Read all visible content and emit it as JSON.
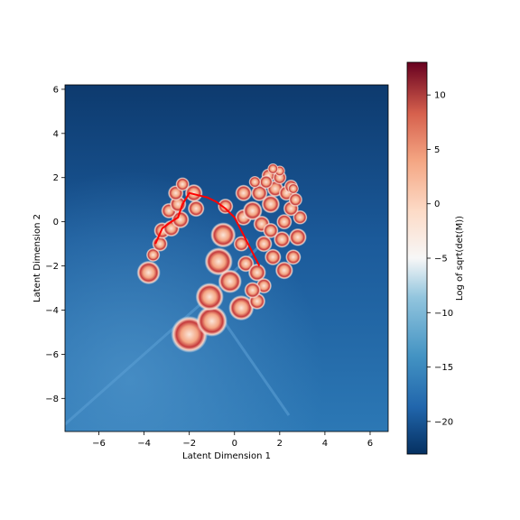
{
  "chart_data": {
    "type": "heatmap",
    "title": "",
    "xlabel": "Latent Dimension 1",
    "ylabel": "Latent Dimension 2",
    "xlim": [
      -7.5,
      6.8
    ],
    "ylim": [
      -9.5,
      6.2
    ],
    "xticks": [
      -6,
      -4,
      -2,
      0,
      2,
      4,
      6
    ],
    "yticks": [
      -8,
      -6,
      -4,
      -2,
      0,
      2,
      4,
      6
    ],
    "grid": false,
    "colorbar": {
      "label": "Log of sqrt(det(M))",
      "colormap": "RdBu_r",
      "range": [
        -23,
        13
      ],
      "ticks": [
        -20,
        -15,
        -10,
        -5,
        0,
        5,
        10
      ]
    },
    "background_level": -21,
    "hotspots": [
      {
        "x": -2.0,
        "y": -5.1,
        "r": 0.65,
        "level": 10
      },
      {
        "x": -1.0,
        "y": -4.5,
        "r": 0.55,
        "level": 10
      },
      {
        "x": -1.1,
        "y": -3.4,
        "r": 0.5,
        "level": 10
      },
      {
        "x": 0.3,
        "y": -3.9,
        "r": 0.45,
        "level": 10
      },
      {
        "x": -0.7,
        "y": -1.8,
        "r": 0.5,
        "level": 10
      },
      {
        "x": -0.2,
        "y": -2.7,
        "r": 0.42,
        "level": 10
      },
      {
        "x": -0.5,
        "y": -0.6,
        "r": 0.45,
        "level": 10
      },
      {
        "x": -3.8,
        "y": -2.3,
        "r": 0.42,
        "level": 10
      },
      {
        "x": -3.6,
        "y": -1.5,
        "r": 0.25,
        "level": 8
      },
      {
        "x": -3.3,
        "y": -1.0,
        "r": 0.28,
        "level": 8
      },
      {
        "x": -3.2,
        "y": -0.4,
        "r": 0.3,
        "level": 8
      },
      {
        "x": -2.8,
        "y": -0.3,
        "r": 0.3,
        "level": 8
      },
      {
        "x": -2.4,
        "y": 0.1,
        "r": 0.32,
        "level": 8
      },
      {
        "x": -2.9,
        "y": 0.5,
        "r": 0.28,
        "level": 8
      },
      {
        "x": -2.5,
        "y": 0.8,
        "r": 0.3,
        "level": 8
      },
      {
        "x": -2.6,
        "y": 1.3,
        "r": 0.28,
        "level": 8
      },
      {
        "x": -2.3,
        "y": 1.7,
        "r": 0.25,
        "level": 8
      },
      {
        "x": -1.8,
        "y": 1.3,
        "r": 0.32,
        "level": 8
      },
      {
        "x": -1.7,
        "y": 0.6,
        "r": 0.3,
        "level": 8
      },
      {
        "x": -0.4,
        "y": 0.7,
        "r": 0.28,
        "level": 8
      },
      {
        "x": 0.4,
        "y": 0.2,
        "r": 0.3,
        "level": 8
      },
      {
        "x": 0.3,
        "y": -1.0,
        "r": 0.28,
        "level": 8
      },
      {
        "x": 0.5,
        "y": -1.9,
        "r": 0.3,
        "level": 8
      },
      {
        "x": 1.0,
        "y": -2.3,
        "r": 0.32,
        "level": 8
      },
      {
        "x": 1.3,
        "y": -2.9,
        "r": 0.28,
        "level": 8
      },
      {
        "x": 1.0,
        "y": -3.6,
        "r": 0.3,
        "level": 8
      },
      {
        "x": 0.8,
        "y": -3.1,
        "r": 0.3,
        "level": 8
      },
      {
        "x": 0.4,
        "y": 1.3,
        "r": 0.3,
        "level": 8
      },
      {
        "x": 0.8,
        "y": 0.5,
        "r": 0.35,
        "level": 8
      },
      {
        "x": 1.2,
        "y": -0.1,
        "r": 0.3,
        "level": 8
      },
      {
        "x": 1.3,
        "y": -1.0,
        "r": 0.3,
        "level": 8
      },
      {
        "x": 1.7,
        "y": -1.6,
        "r": 0.3,
        "level": 8
      },
      {
        "x": 2.2,
        "y": -2.2,
        "r": 0.32,
        "level": 8
      },
      {
        "x": 2.6,
        "y": -1.6,
        "r": 0.28,
        "level": 8
      },
      {
        "x": 2.1,
        "y": -0.8,
        "r": 0.3,
        "level": 8
      },
      {
        "x": 1.6,
        "y": -0.4,
        "r": 0.28,
        "level": 8
      },
      {
        "x": 2.2,
        "y": 0.0,
        "r": 0.28,
        "level": 8
      },
      {
        "x": 2.8,
        "y": -0.7,
        "r": 0.32,
        "level": 8
      },
      {
        "x": 2.9,
        "y": 0.2,
        "r": 0.26,
        "level": 8
      },
      {
        "x": 2.5,
        "y": 0.6,
        "r": 0.28,
        "level": 8
      },
      {
        "x": 1.6,
        "y": 0.8,
        "r": 0.33,
        "level": 8
      },
      {
        "x": 1.1,
        "y": 1.3,
        "r": 0.3,
        "level": 8
      },
      {
        "x": 1.8,
        "y": 1.5,
        "r": 0.3,
        "level": 8
      },
      {
        "x": 2.3,
        "y": 1.3,
        "r": 0.28,
        "level": 8
      },
      {
        "x": 2.7,
        "y": 1.0,
        "r": 0.25,
        "level": 8
      },
      {
        "x": 2.5,
        "y": 1.6,
        "r": 0.25,
        "level": 8
      },
      {
        "x": 1.5,
        "y": 2.1,
        "r": 0.25,
        "level": 8
      },
      {
        "x": 2.0,
        "y": 2.0,
        "r": 0.25,
        "level": 8
      },
      {
        "x": 1.4,
        "y": 1.8,
        "r": 0.25,
        "level": 8
      },
      {
        "x": 2.0,
        "y": 2.3,
        "r": 0.2,
        "level": 8
      },
      {
        "x": 1.7,
        "y": 2.4,
        "r": 0.2,
        "level": 8
      },
      {
        "x": 0.9,
        "y": 1.8,
        "r": 0.22,
        "level": 8
      },
      {
        "x": 2.6,
        "y": 1.5,
        "r": 0.2,
        "level": 8
      }
    ],
    "series": [
      {
        "type": "line",
        "color": "#ff0000",
        "x": [
          -3.5,
          -3.2,
          -2.8,
          -2.5,
          -2.3,
          -2.0,
          -1.6,
          -1.2,
          -0.8,
          -0.4,
          0.0,
          0.3,
          0.6,
          0.9,
          1.1
        ],
        "y": [
          -1.0,
          -0.3,
          0.0,
          0.2,
          0.8,
          1.3,
          1.2,
          1.1,
          0.9,
          0.6,
          0.2,
          -0.4,
          -1.0,
          -1.6,
          -2.0
        ]
      }
    ]
  }
}
